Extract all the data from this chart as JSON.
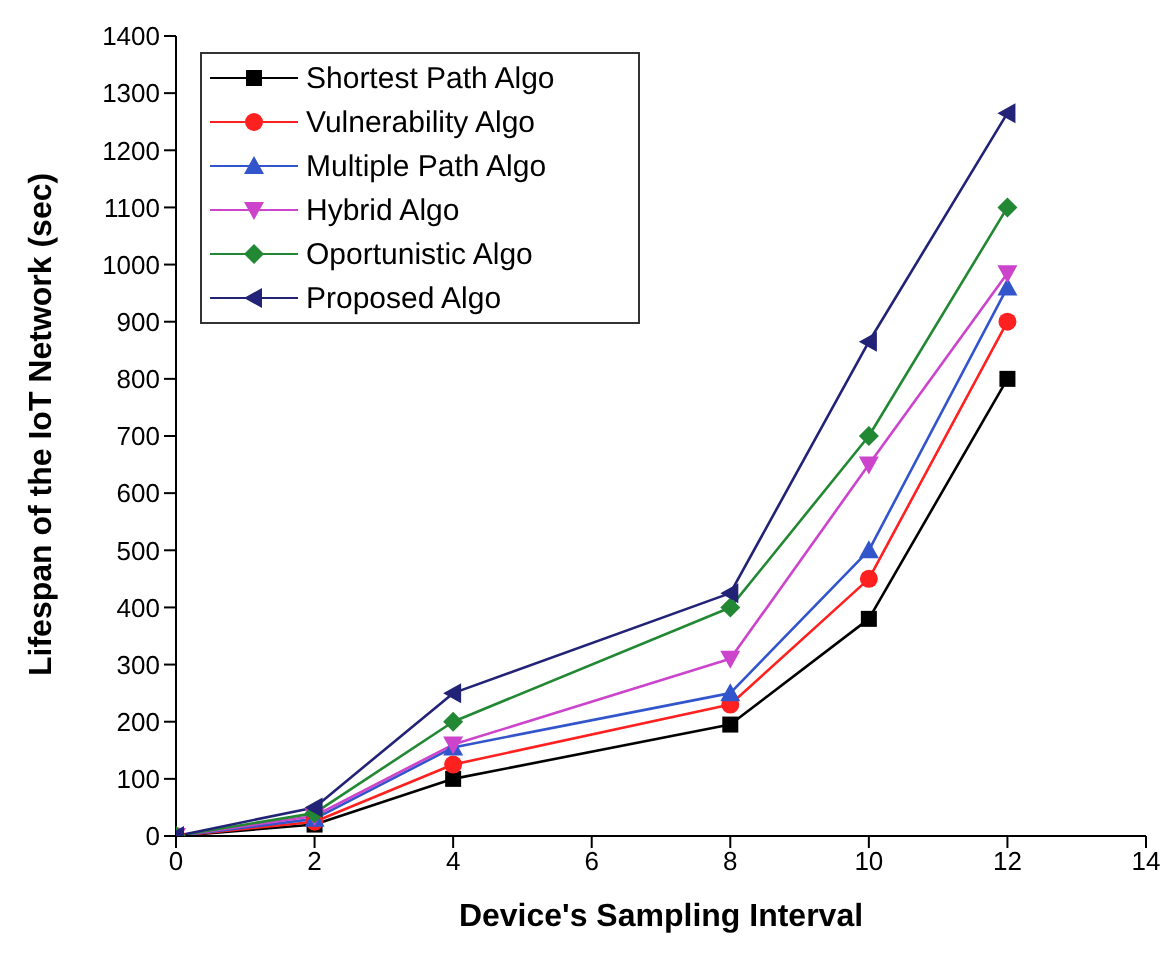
{
  "chart_data": {
    "type": "line",
    "xlabel": "Device's Sampling Interval",
    "ylabel": "Lifespan of the IoT Network (sec)",
    "x": [
      0,
      2,
      4,
      8,
      10,
      12
    ],
    "xlim": [
      0,
      14
    ],
    "xticks": [
      0,
      2,
      4,
      6,
      8,
      10,
      12,
      14
    ],
    "ylim": [
      0,
      1400
    ],
    "yticks": [
      0,
      100,
      200,
      300,
      400,
      500,
      600,
      700,
      800,
      900,
      1000,
      1100,
      1200,
      1300,
      1400
    ],
    "grid": false,
    "legend": "top left",
    "line_style": "solid",
    "series": [
      {
        "name": "Shortest Path Algo",
        "color": "#000000",
        "marker": "square",
        "values": [
          0,
          20,
          100,
          195,
          380,
          800
        ]
      },
      {
        "name": "Vulnerability Algo",
        "color": "#ff2020",
        "marker": "circle",
        "values": [
          0,
          25,
          125,
          230,
          450,
          900
        ]
      },
      {
        "name": "Multiple Path Algo",
        "color": "#3355cc",
        "marker": "triangle",
        "values": [
          0,
          30,
          155,
          250,
          500,
          960
        ]
      },
      {
        "name": "Hybrid Algo",
        "color": "#cc44cc",
        "marker": "triangle-down",
        "values": [
          0,
          35,
          160,
          310,
          650,
          985
        ]
      },
      {
        "name": "Oportunistic Algo",
        "color": "#228833",
        "marker": "diamond",
        "values": [
          0,
          40,
          200,
          400,
          700,
          1100
        ]
      },
      {
        "name": "Proposed Algo",
        "color": "#222277",
        "marker": "triangle-left",
        "values": [
          0,
          50,
          250,
          425,
          865,
          1265
        ]
      }
    ]
  }
}
